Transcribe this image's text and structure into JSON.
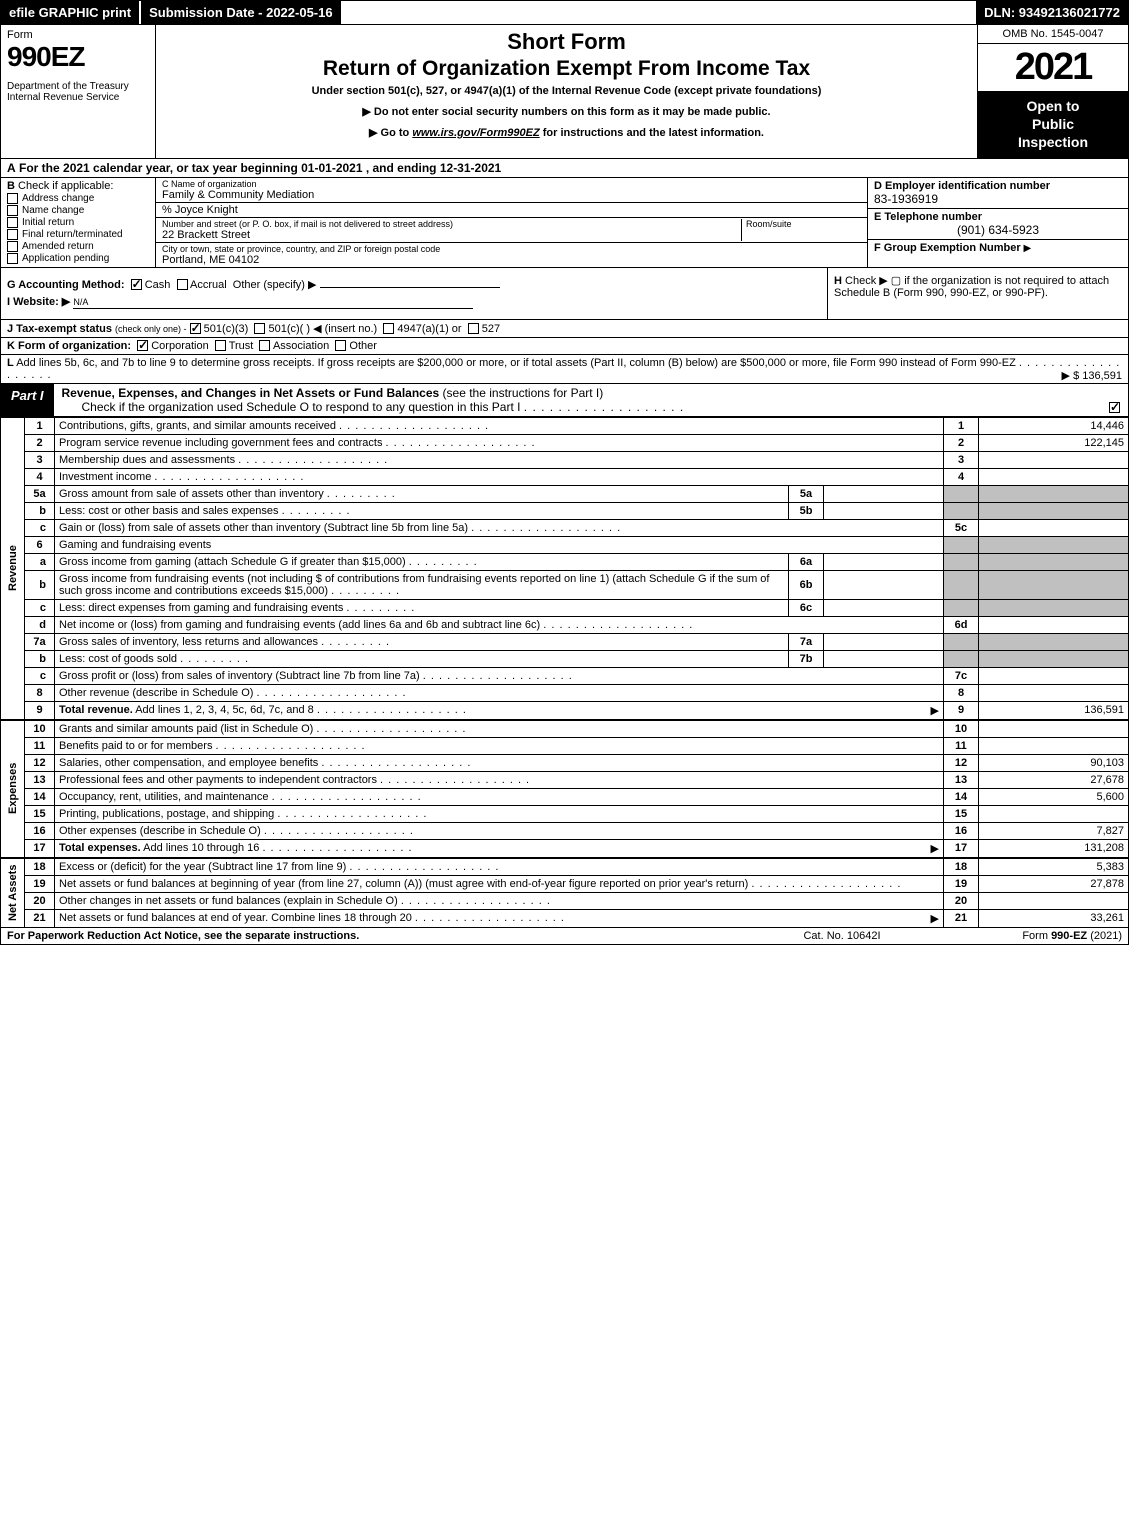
{
  "topbar": {
    "efile": "efile GRAPHIC print",
    "submission": "Submission Date - 2022-05-16",
    "dln": "DLN: 93492136021772"
  },
  "header": {
    "form_label": "Form",
    "form_number": "990EZ",
    "dept": "Department of the Treasury\nInternal Revenue Service",
    "short_form": "Short Form",
    "return_title": "Return of Organization Exempt From Income Tax",
    "under_section": "Under section 501(c), 527, or 4947(a)(1) of the Internal Revenue Code (except private foundations)",
    "instr1": "▶ Do not enter social security numbers on this form as it may be made public.",
    "instr2_prefix": "▶ Go to ",
    "instr2_link": "www.irs.gov/Form990EZ",
    "instr2_suffix": " for instructions and the latest information.",
    "omb": "OMB No. 1545-0047",
    "year": "2021",
    "open1": "Open to",
    "open2": "Public",
    "open3": "Inspection"
  },
  "section_a": {
    "label": "A",
    "text": "For the 2021 calendar year, or tax year beginning 01-01-2021 , and ending 12-31-2021"
  },
  "section_b": {
    "label": "B",
    "title": "Check if applicable:",
    "items": [
      {
        "label": "Address change",
        "checked": false
      },
      {
        "label": "Name change",
        "checked": false
      },
      {
        "label": "Initial return",
        "checked": false
      },
      {
        "label": "Final return/terminated",
        "checked": false
      },
      {
        "label": "Amended return",
        "checked": false
      },
      {
        "label": "Application pending",
        "checked": false
      }
    ]
  },
  "section_c": {
    "name_label": "C Name of organization",
    "name": "Family & Community Mediation",
    "care_of": "% Joyce Knight",
    "street_label": "Number and street (or P. O. box, if mail is not delivered to street address)",
    "room_label": "Room/suite",
    "street": "22 Brackett Street",
    "city_label": "City or town, state or province, country, and ZIP or foreign postal code",
    "city": "Portland, ME  04102"
  },
  "section_d": {
    "ein_label": "D Employer identification number",
    "ein": "83-1936919",
    "phone_label": "E Telephone number",
    "phone": "(901) 634-5923",
    "group_label": "F Group Exemption Number",
    "group_arrow": "▶"
  },
  "section_g": {
    "label": "G Accounting Method:",
    "cash": "Cash",
    "accrual": "Accrual",
    "other": "Other (specify) ▶",
    "website_label": "I Website: ▶",
    "website": "N/A"
  },
  "section_h": {
    "label": "H",
    "text": "Check ▶    ▢   if the organization is not required to attach Schedule B (Form 990, 990-EZ, or 990-PF)."
  },
  "section_j": {
    "label": "J Tax-exempt status",
    "sub": "(check only one) -",
    "opt1": "501(c)(3)",
    "opt2": "501(c)(   ) ◀ (insert no.)",
    "opt3": "4947(a)(1) or",
    "opt4": "527"
  },
  "section_k": {
    "label": "K Form of organization:",
    "opt1": "Corporation",
    "opt2": "Trust",
    "opt3": "Association",
    "opt4": "Other"
  },
  "section_l": {
    "label": "L",
    "text": "Add lines 5b, 6c, and 7b to line 9 to determine gross receipts. If gross receipts are $200,000 or more, or if total assets (Part II, column (B) below) are $500,000 or more, file Form 990 instead of Form 990-EZ",
    "arrow": "▶",
    "amount": "$ 136,591"
  },
  "part1": {
    "tab": "Part I",
    "title": "Revenue, Expenses, and Changes in Net Assets or Fund Balances",
    "sub": "(see the instructions for Part I)",
    "check_text": "Check if the organization used Schedule O to respond to any question in this Part I"
  },
  "side_labels": {
    "revenue": "Revenue",
    "expenses": "Expenses",
    "net_assets": "Net Assets"
  },
  "lines": [
    {
      "n": "1",
      "desc": "Contributions, gifts, grants, and similar amounts received",
      "ln": "1",
      "amt": "14,446"
    },
    {
      "n": "2",
      "desc": "Program service revenue including government fees and contracts",
      "ln": "2",
      "amt": "122,145"
    },
    {
      "n": "3",
      "desc": "Membership dues and assessments",
      "ln": "3",
      "amt": ""
    },
    {
      "n": "4",
      "desc": "Investment income",
      "ln": "4",
      "amt": ""
    },
    {
      "n": "5a",
      "desc": "Gross amount from sale of assets other than inventory",
      "inner_n": "5a",
      "inner_v": ""
    },
    {
      "n": "b",
      "desc": "Less: cost or other basis and sales expenses",
      "inner_n": "5b",
      "inner_v": ""
    },
    {
      "n": "c",
      "desc": "Gain or (loss) from sale of assets other than inventory (Subtract line 5b from line 5a)",
      "ln": "5c",
      "amt": ""
    },
    {
      "n": "6",
      "desc": "Gaming and fundraising events"
    },
    {
      "n": "a",
      "desc": "Gross income from gaming (attach Schedule G if greater than $15,000)",
      "inner_n": "6a",
      "inner_v": ""
    },
    {
      "n": "b",
      "desc": "Gross income from fundraising events (not including $                          of contributions from fundraising events reported on line 1) (attach Schedule G if the sum of such gross income and contributions exceeds $15,000)",
      "inner_n": "6b",
      "inner_v": ""
    },
    {
      "n": "c",
      "desc": "Less: direct expenses from gaming and fundraising events",
      "inner_n": "6c",
      "inner_v": ""
    },
    {
      "n": "d",
      "desc": "Net income or (loss) from gaming and fundraising events (add lines 6a and 6b and subtract line 6c)",
      "ln": "6d",
      "amt": ""
    },
    {
      "n": "7a",
      "desc": "Gross sales of inventory, less returns and allowances",
      "inner_n": "7a",
      "inner_v": ""
    },
    {
      "n": "b",
      "desc": "Less: cost of goods sold",
      "inner_n": "7b",
      "inner_v": ""
    },
    {
      "n": "c",
      "desc": "Gross profit or (loss) from sales of inventory (Subtract line 7b from line 7a)",
      "ln": "7c",
      "amt": ""
    },
    {
      "n": "8",
      "desc": "Other revenue (describe in Schedule O)",
      "ln": "8",
      "amt": ""
    },
    {
      "n": "9",
      "desc": "Total revenue. Add lines 1, 2, 3, 4, 5c, 6d, 7c, and 8",
      "ln": "9",
      "amt": "136,591",
      "bold": true,
      "arrow": true
    }
  ],
  "expense_lines": [
    {
      "n": "10",
      "desc": "Grants and similar amounts paid (list in Schedule O)",
      "ln": "10",
      "amt": ""
    },
    {
      "n": "11",
      "desc": "Benefits paid to or for members",
      "ln": "11",
      "amt": ""
    },
    {
      "n": "12",
      "desc": "Salaries, other compensation, and employee benefits",
      "ln": "12",
      "amt": "90,103"
    },
    {
      "n": "13",
      "desc": "Professional fees and other payments to independent contractors",
      "ln": "13",
      "amt": "27,678"
    },
    {
      "n": "14",
      "desc": "Occupancy, rent, utilities, and maintenance",
      "ln": "14",
      "amt": "5,600"
    },
    {
      "n": "15",
      "desc": "Printing, publications, postage, and shipping",
      "ln": "15",
      "amt": ""
    },
    {
      "n": "16",
      "desc": "Other expenses (describe in Schedule O)",
      "ln": "16",
      "amt": "7,827"
    },
    {
      "n": "17",
      "desc": "Total expenses. Add lines 10 through 16",
      "ln": "17",
      "amt": "131,208",
      "bold": true,
      "arrow": true
    }
  ],
  "net_lines": [
    {
      "n": "18",
      "desc": "Excess or (deficit) for the year (Subtract line 17 from line 9)",
      "ln": "18",
      "amt": "5,383"
    },
    {
      "n": "19",
      "desc": "Net assets or fund balances at beginning of year (from line 27, column (A)) (must agree with end-of-year figure reported on prior year's return)",
      "ln": "19",
      "amt": "27,878"
    },
    {
      "n": "20",
      "desc": "Other changes in net assets or fund balances (explain in Schedule O)",
      "ln": "20",
      "amt": ""
    },
    {
      "n": "21",
      "desc": "Net assets or fund balances at end of year. Combine lines 18 through 20",
      "ln": "21",
      "amt": "33,261",
      "arrow": true
    }
  ],
  "footer": {
    "left": "For Paperwork Reduction Act Notice, see the separate instructions.",
    "mid": "Cat. No. 10642I",
    "right_prefix": "Form ",
    "right_form": "990-EZ",
    "right_suffix": " (2021)"
  }
}
